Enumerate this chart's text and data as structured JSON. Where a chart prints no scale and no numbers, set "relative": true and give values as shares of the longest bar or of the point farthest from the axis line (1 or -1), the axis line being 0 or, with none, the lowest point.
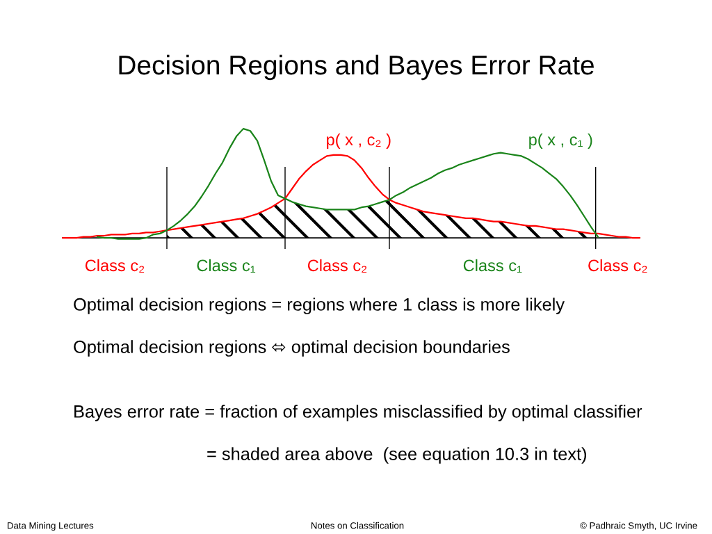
{
  "chart_data": {
    "type": "line",
    "title": "Decision Regions and Bayes Error Rate",
    "relative": true,
    "tick_labels": false,
    "grid": "x",
    "categories": [
      null,
      null,
      null,
      null,
      null,
      null,
      null,
      null,
      null,
      null,
      null,
      null,
      null,
      null,
      null,
      null,
      null,
      null,
      null,
      null,
      null,
      null,
      null,
      null,
      null,
      null,
      null,
      null,
      null,
      null,
      null,
      null,
      null,
      null,
      null,
      null,
      null,
      null,
      null,
      null,
      null,
      null,
      null,
      null,
      null,
      null,
      null,
      null,
      null,
      null,
      null,
      null,
      null,
      null,
      null,
      null,
      null,
      null,
      null,
      null,
      null,
      null,
      null,
      null,
      null,
      null,
      null,
      null,
      null,
      null,
      null,
      null,
      null,
      null,
      null,
      null,
      null,
      null,
      null,
      null,
      null,
      null,
      null,
      null
    ],
    "series": [
      {
        "name": "p( x , c₂ )",
        "color": "#ff0000",
        "values": [
          0.0,
          0.0,
          0.0,
          0.01,
          0.01,
          0.02,
          0.02,
          0.03,
          0.03,
          0.03,
          0.04,
          0.04,
          0.05,
          0.05,
          0.06,
          0.07,
          0.08,
          0.09,
          0.1,
          0.11,
          0.12,
          0.13,
          0.14,
          0.15,
          0.16,
          0.17,
          0.18,
          0.2,
          0.22,
          0.25,
          0.28,
          0.32,
          0.36,
          0.45,
          0.54,
          0.61,
          0.67,
          0.71,
          0.75,
          0.76,
          0.76,
          0.75,
          0.71,
          0.64,
          0.55,
          0.47,
          0.4,
          0.35,
          0.32,
          0.3,
          0.28,
          0.26,
          0.24,
          0.23,
          0.22,
          0.21,
          0.2,
          0.19,
          0.18,
          0.18,
          0.17,
          0.16,
          0.15,
          0.15,
          0.14,
          0.13,
          0.12,
          0.11,
          0.11,
          0.1,
          0.09,
          0.08,
          0.08,
          0.07,
          0.06,
          0.05,
          0.04,
          0.04,
          0.03,
          0.02,
          0.01,
          0.01,
          0.0,
          0.0
        ]
      },
      {
        "name": "p( x , c₁ )",
        "color": "#1a841a",
        "values": [
          null,
          null,
          null,
          null,
          null,
          0.01,
          0.0,
          0.0,
          -0.01,
          -0.01,
          -0.01,
          -0.01,
          0.0,
          0.03,
          0.04,
          0.07,
          0.11,
          0.16,
          0.22,
          0.29,
          0.38,
          0.48,
          0.59,
          0.69,
          0.82,
          0.93,
          1.0,
          0.98,
          0.89,
          0.71,
          0.52,
          0.39,
          0.36,
          0.33,
          0.31,
          0.29,
          0.28,
          0.27,
          0.26,
          0.26,
          0.26,
          0.26,
          0.26,
          0.28,
          0.29,
          0.31,
          0.33,
          0.35,
          0.39,
          0.42,
          0.46,
          0.49,
          0.52,
          0.55,
          0.59,
          0.62,
          0.64,
          0.67,
          0.69,
          0.71,
          0.73,
          0.75,
          0.77,
          0.78,
          0.77,
          0.76,
          0.75,
          0.72,
          0.68,
          0.64,
          0.59,
          0.54,
          0.47,
          0.39,
          0.3,
          0.2,
          0.1,
          0.01,
          null,
          null,
          null,
          null,
          null,
          null
        ]
      },
      {
        "type": "area",
        "color": "#000000",
        "values": [
          null,
          null,
          null,
          null,
          null,
          null,
          null,
          null,
          null,
          null,
          null,
          null,
          null,
          null,
          null,
          0.07,
          0.08,
          0.09,
          0.1,
          0.11,
          0.12,
          0.13,
          0.14,
          0.15,
          0.16,
          0.17,
          0.18,
          0.2,
          0.22,
          0.25,
          0.28,
          0.32,
          0.36,
          0.33,
          0.31,
          0.29,
          0.28,
          0.27,
          0.26,
          0.26,
          0.26,
          0.26,
          0.26,
          0.28,
          0.29,
          0.31,
          0.33,
          0.35,
          0.32,
          0.3,
          0.28,
          0.26,
          0.24,
          0.23,
          0.22,
          0.21,
          0.2,
          0.19,
          0.18,
          0.18,
          0.17,
          0.16,
          0.15,
          0.15,
          0.14,
          0.13,
          0.12,
          0.11,
          0.11,
          0.1,
          0.09,
          0.08,
          0.08,
          0.07,
          0.06,
          0.05,
          0.04,
          0.01,
          null,
          null,
          null,
          null,
          null,
          null
        ]
      }
    ],
    "annotations": [
      "Class c₂",
      "Class c₁",
      "Class c₂",
      "Class c₁",
      "Class c₂",
      "Optimal decision regions = regions where 1 class is more likely",
      "Optimal decision regions ⬄ optimal decision boundaries",
      "Bayes error rate = fraction of examples misclassified by optimal classifier",
      "= shaded area above  (see equation 10.3 in text)",
      "Data Mining Lectures",
      "Notes on Classification",
      "© Padhraic Smyth, UC Irvine"
    ]
  }
}
